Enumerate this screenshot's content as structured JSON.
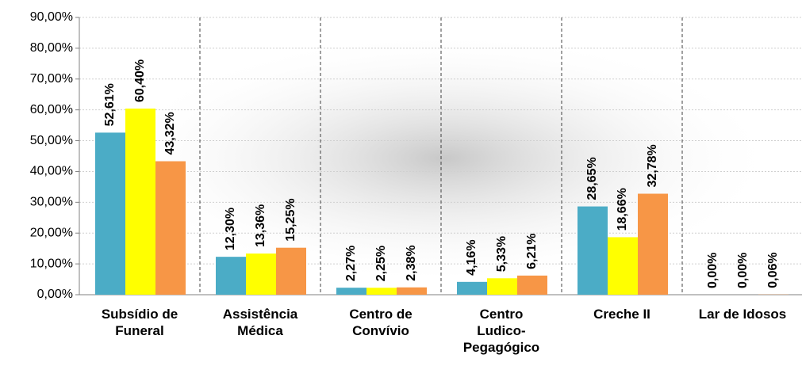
{
  "chart_data": {
    "type": "bar",
    "categories": [
      "Subsídio de\nFuneral",
      "Assistência\nMédica",
      "Centro de\nConvívio",
      "Centro\nLudico-\nPegagógico",
      "Creche II",
      "Lar de Idosos"
    ],
    "series": [
      {
        "color": "#4bacc6",
        "values": [
          52.61,
          12.3,
          2.27,
          4.16,
          28.65,
          0.0
        ],
        "value_labels": [
          "52,61%",
          "12,30%",
          "2,27%",
          "4,16%",
          "28,65%",
          "0,00%"
        ]
      },
      {
        "color": "#ffff00",
        "values": [
          60.4,
          13.36,
          2.25,
          5.33,
          18.66,
          0.0
        ],
        "value_labels": [
          "60,40%",
          "13,36%",
          "2,25%",
          "5,33%",
          "18,66%",
          "0,00%"
        ]
      },
      {
        "color": "#f79646",
        "values": [
          43.32,
          15.25,
          2.38,
          6.21,
          32.78,
          0.06
        ],
        "value_labels": [
          "43,32%",
          "15,25%",
          "2,38%",
          "6,21%",
          "32,78%",
          "0,06%"
        ]
      }
    ],
    "ylim": [
      0,
      90
    ],
    "yticks": [
      {
        "value": 0,
        "label": "0,00%"
      },
      {
        "value": 10,
        "label": "10,00%"
      },
      {
        "value": 20,
        "label": "20,00%"
      },
      {
        "value": 30,
        "label": "30,00%"
      },
      {
        "value": 40,
        "label": "40,00%"
      },
      {
        "value": 50,
        "label": "50,00%"
      },
      {
        "value": 60,
        "label": "60,00%"
      },
      {
        "value": 70,
        "label": "70,00%"
      },
      {
        "value": 80,
        "label": "80,00%"
      },
      {
        "value": 90,
        "label": "90,00%"
      }
    ],
    "grid": true
  }
}
